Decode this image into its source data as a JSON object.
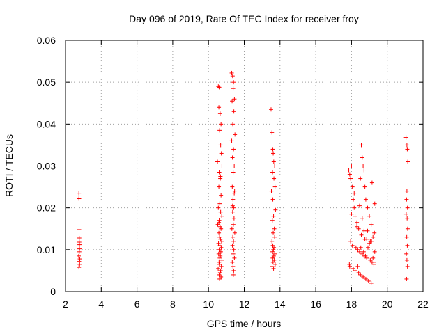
{
  "chart_data": {
    "type": "scatter",
    "title": "Day 096 of 2019, Rate Of TEC Index for receiver froy",
    "xlabel": "GPS time / hours",
    "ylabel": "ROTI / TECUs",
    "xlim": [
      2,
      22
    ],
    "ylim": [
      0,
      0.06
    ],
    "xticks": [
      2,
      4,
      6,
      8,
      10,
      12,
      14,
      16,
      18,
      20,
      22
    ],
    "yticks": [
      0,
      0.01,
      0.02,
      0.03,
      0.04,
      0.05,
      0.06
    ],
    "xtick_labels": [
      "2",
      "4",
      "6",
      "8",
      "10",
      "12",
      "14",
      "16",
      "18",
      "20",
      "22"
    ],
    "ytick_labels": [
      "0",
      "0.01",
      "0.02",
      "0.03",
      "0.04",
      "0.05",
      "0.06"
    ],
    "grid": true,
    "marker": "+",
    "color": "#ff0000",
    "series": [
      {
        "name": "ROTI",
        "x": [
          2.75,
          2.75,
          2.76,
          2.76,
          2.77,
          2.77,
          2.78,
          2.78,
          2.74,
          2.8,
          2.76,
          2.79,
          2.75,
          2.77,
          10.55,
          10.6,
          10.58,
          10.65,
          10.7,
          10.62,
          10.68,
          10.72,
          10.5,
          10.75,
          10.6,
          10.66,
          10.58,
          10.7,
          10.63,
          10.55,
          10.68,
          10.74,
          10.6,
          10.52,
          10.65,
          10.7,
          10.58,
          10.62,
          10.67,
          10.73,
          10.56,
          10.64,
          10.71,
          10.6,
          10.69,
          10.57,
          10.66,
          10.63,
          10.75,
          10.59,
          10.61,
          10.72,
          10.54,
          10.68,
          10.65,
          10.6,
          10.7,
          10.62,
          10.58,
          10.67,
          11.3,
          11.35,
          11.4,
          11.38,
          11.45,
          11.32,
          11.42,
          11.36,
          11.48,
          11.3,
          11.4,
          11.34,
          11.44,
          11.38,
          11.33,
          11.46,
          11.37,
          11.41,
          11.35,
          11.43,
          11.39,
          11.31,
          11.47,
          11.36,
          11.4,
          11.34,
          11.42,
          11.38,
          11.45,
          11.33,
          11.37,
          11.41,
          11.39,
          11.35,
          11.44,
          13.5,
          13.55,
          13.6,
          13.62,
          13.65,
          13.7,
          13.58,
          13.66,
          13.72,
          13.52,
          13.6,
          13.75,
          13.64,
          13.57,
          13.68,
          13.62,
          13.7,
          13.55,
          13.6,
          13.66,
          13.63,
          13.58,
          13.71,
          13.65,
          13.59,
          13.67,
          13.61,
          13.73,
          13.56,
          13.64,
          17.85,
          17.9,
          17.95,
          18.0,
          18.05,
          18.1,
          18.15,
          18.2,
          18.3,
          18.4,
          18.5,
          18.55,
          18.6,
          18.65,
          18.7,
          18.75,
          18.8,
          18.9,
          19.0,
          19.1,
          19.2,
          19.3,
          17.95,
          18.05,
          18.25,
          18.35,
          18.45,
          18.6,
          18.7,
          18.85,
          19.05,
          19.15,
          19.25,
          17.9,
          18.1,
          18.2,
          18.4,
          18.5,
          18.65,
          18.8,
          18.95,
          19.1,
          19.2,
          19.3,
          18.0,
          18.3,
          18.55,
          18.75,
          18.9,
          19.0,
          19.15,
          18.15,
          18.45,
          18.6,
          18.7,
          18.85,
          19.05,
          19.25,
          17.88,
          18.35,
          18.52,
          18.68,
          18.78,
          18.92,
          19.12,
          19.28,
          21.05,
          21.1,
          21.12,
          21.15,
          21.1,
          21.08,
          21.13,
          21.06,
          21.11,
          21.14,
          21.09,
          21.12,
          21.07,
          21.1,
          21.13,
          21.08
        ],
        "y": [
          0.0235,
          0.0222,
          0.0222,
          0.0148,
          0.0128,
          0.0118,
          0.0112,
          0.0102,
          0.0085,
          0.0078,
          0.0072,
          0.0065,
          0.0058,
          0.0095,
          0.049,
          0.0488,
          0.044,
          0.0425,
          0.04,
          0.0385,
          0.035,
          0.033,
          0.031,
          0.03,
          0.0285,
          0.027,
          0.025,
          0.023,
          0.021,
          0.02,
          0.019,
          0.018,
          0.017,
          0.016,
          0.0155,
          0.015,
          0.014,
          0.013,
          0.0125,
          0.012,
          0.0115,
          0.011,
          0.0105,
          0.01,
          0.0095,
          0.009,
          0.0085,
          0.008,
          0.0075,
          0.007,
          0.0065,
          0.006,
          0.0055,
          0.005,
          0.0045,
          0.004,
          0.0035,
          0.003,
          0.0165,
          0.0275,
          0.0522,
          0.0515,
          0.05,
          0.0485,
          0.046,
          0.0455,
          0.043,
          0.04,
          0.0375,
          0.036,
          0.034,
          0.032,
          0.03,
          0.0285,
          0.025,
          0.024,
          0.022,
          0.02,
          0.019,
          0.0175,
          0.016,
          0.015,
          0.014,
          0.013,
          0.012,
          0.011,
          0.01,
          0.009,
          0.008,
          0.007,
          0.006,
          0.005,
          0.004,
          0.0205,
          0.0235,
          0.0435,
          0.038,
          0.034,
          0.033,
          0.031,
          0.03,
          0.0285,
          0.027,
          0.025,
          0.024,
          0.022,
          0.0195,
          0.018,
          0.017,
          0.015,
          0.014,
          0.013,
          0.012,
          0.011,
          0.0105,
          0.01,
          0.0095,
          0.009,
          0.0085,
          0.008,
          0.0075,
          0.007,
          0.0065,
          0.006,
          0.0055,
          0.029,
          0.028,
          0.027,
          0.03,
          0.025,
          0.022,
          0.02,
          0.018,
          0.0165,
          0.015,
          0.027,
          0.035,
          0.032,
          0.03,
          0.029,
          0.025,
          0.022,
          0.02,
          0.018,
          0.016,
          0.013,
          0.021,
          0.012,
          0.011,
          0.0105,
          0.01,
          0.0095,
          0.009,
          0.0085,
          0.008,
          0.0075,
          0.007,
          0.0065,
          0.006,
          0.0055,
          0.005,
          0.0045,
          0.004,
          0.0035,
          0.003,
          0.0025,
          0.002,
          0.008,
          0.0095,
          0.0185,
          0.0155,
          0.0135,
          0.0125,
          0.0145,
          0.0115,
          0.026,
          0.0235,
          0.0205,
          0.0175,
          0.0145,
          0.0125,
          0.012,
          0.007,
          0.0065,
          0.006,
          0.0105,
          0.0095,
          0.0085,
          0.0105,
          0.012,
          0.014,
          0.0368,
          0.035,
          0.034,
          0.031,
          0.024,
          0.022,
          0.02,
          0.0185,
          0.0175,
          0.015,
          0.013,
          0.011,
          0.009,
          0.0075,
          0.006,
          0.003
        ]
      }
    ]
  }
}
